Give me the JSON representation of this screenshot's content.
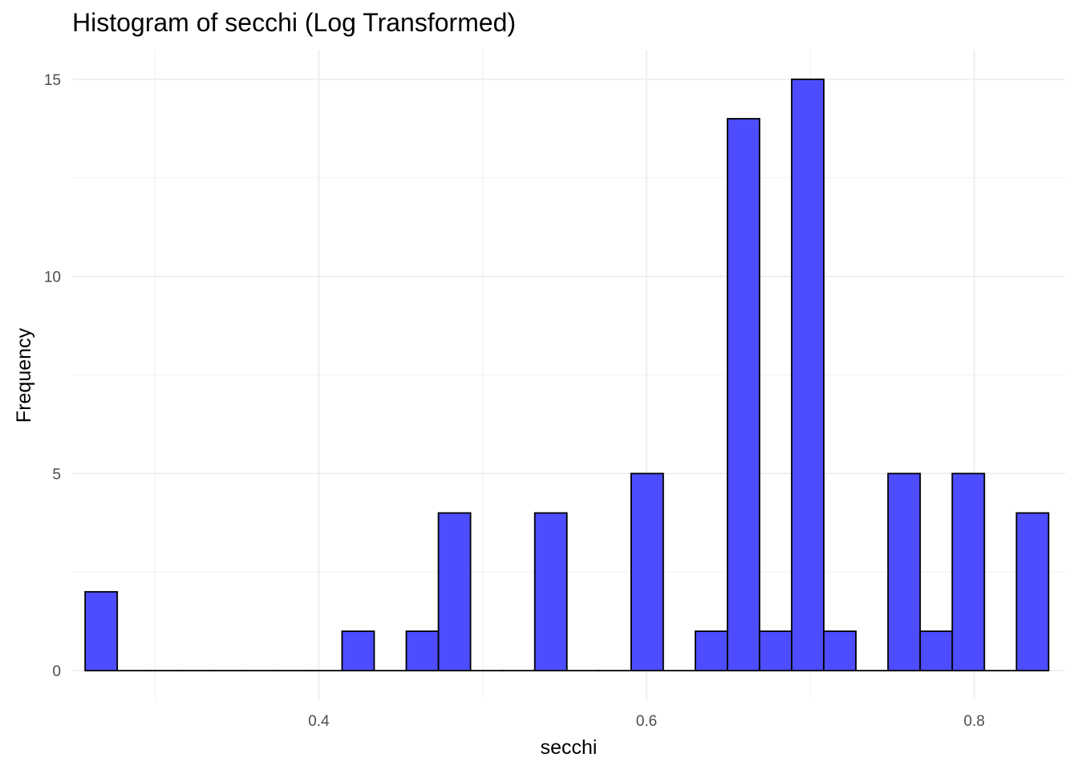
{
  "chart_data": {
    "type": "bar",
    "title": "Histogram of secchi (Log Transformed)",
    "xlabel": "secchi",
    "ylabel": "Frequency",
    "xlim": [
      0.2495,
      0.8555
    ],
    "ylim": [
      -0.75,
      15.75
    ],
    "x_ticks": [
      0.4,
      0.6,
      0.8
    ],
    "x_tick_labels": [
      "0.4",
      "0.6",
      "0.8"
    ],
    "y_ticks": [
      0,
      5,
      10,
      15
    ],
    "y_tick_labels": [
      "0",
      "5",
      "10",
      "15"
    ],
    "grid": true,
    "fill_color": "#4d4dff",
    "edge_color": "#000000",
    "bin_width": 0.0196,
    "bins": [
      {
        "start": 0.2574,
        "end": 0.277,
        "count": 2
      },
      {
        "start": 0.277,
        "end": 0.2966,
        "count": 0
      },
      {
        "start": 0.2966,
        "end": 0.3162,
        "count": 0
      },
      {
        "start": 0.3162,
        "end": 0.3358,
        "count": 0
      },
      {
        "start": 0.3358,
        "end": 0.3554,
        "count": 0
      },
      {
        "start": 0.3554,
        "end": 0.375,
        "count": 0
      },
      {
        "start": 0.375,
        "end": 0.3946,
        "count": 0
      },
      {
        "start": 0.3946,
        "end": 0.4142,
        "count": 0
      },
      {
        "start": 0.4142,
        "end": 0.4338,
        "count": 1
      },
      {
        "start": 0.4338,
        "end": 0.4534,
        "count": 0
      },
      {
        "start": 0.4534,
        "end": 0.473,
        "count": 1
      },
      {
        "start": 0.473,
        "end": 0.4926,
        "count": 4
      },
      {
        "start": 0.4926,
        "end": 0.5122,
        "count": 0
      },
      {
        "start": 0.5122,
        "end": 0.5318,
        "count": 0
      },
      {
        "start": 0.5318,
        "end": 0.5514,
        "count": 4
      },
      {
        "start": 0.5514,
        "end": 0.571,
        "count": 0
      },
      {
        "start": 0.571,
        "end": 0.5906,
        "count": 0
      },
      {
        "start": 0.5906,
        "end": 0.6102,
        "count": 5
      },
      {
        "start": 0.6102,
        "end": 0.6298,
        "count": 0
      },
      {
        "start": 0.6298,
        "end": 0.6494,
        "count": 1
      },
      {
        "start": 0.6494,
        "end": 0.669,
        "count": 14
      },
      {
        "start": 0.669,
        "end": 0.6886,
        "count": 1
      },
      {
        "start": 0.6886,
        "end": 0.7082,
        "count": 15
      },
      {
        "start": 0.7082,
        "end": 0.7278,
        "count": 1
      },
      {
        "start": 0.7278,
        "end": 0.7474,
        "count": 0
      },
      {
        "start": 0.7474,
        "end": 0.767,
        "count": 5
      },
      {
        "start": 0.767,
        "end": 0.7866,
        "count": 1
      },
      {
        "start": 0.7866,
        "end": 0.8062,
        "count": 5
      },
      {
        "start": 0.8062,
        "end": 0.8258,
        "count": 0
      },
      {
        "start": 0.8258,
        "end": 0.8454,
        "count": 4
      }
    ]
  }
}
